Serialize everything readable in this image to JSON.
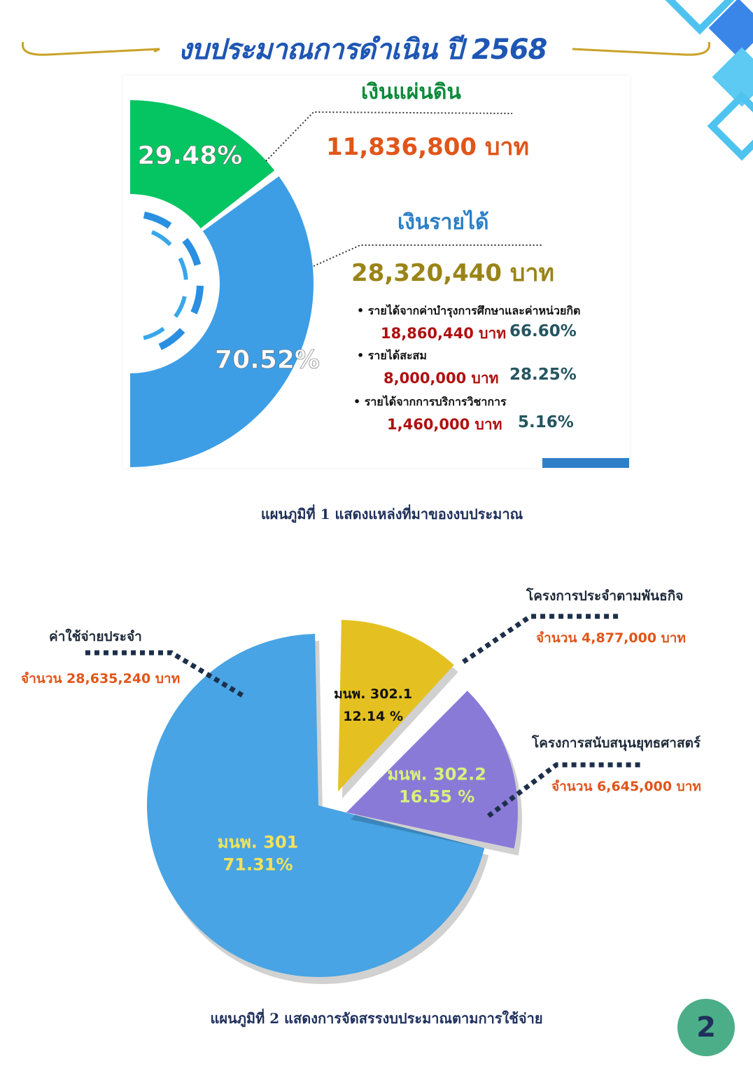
{
  "title": "งบประมาณการดำเนิน ปี 2568",
  "page_number": "2",
  "chart_data": [
    {
      "type": "pie",
      "style": "half-donut",
      "caption": "แผนภูมิที่ 1 แสดงแหล่งที่มาของงบประมาณ",
      "categories": [
        "เงินแผ่นดิน",
        "เงินรายได้"
      ],
      "values": [
        11836800,
        28320440
      ],
      "percent_labels": [
        "29.48%",
        "70.52%"
      ],
      "amount_labels": [
        "11,836,800 บาท",
        "28,320,440 บาท"
      ],
      "colors": [
        "#05c462",
        "#3d9ee6"
      ],
      "breakdown": [
        {
          "label": "รายได้จากค่าบำรุงการศึกษาและค่าหน่วยกิต",
          "amount": "18,860,440 บาท",
          "percent": "66.60%"
        },
        {
          "label": "รายได้สะสม",
          "amount": "8,000,000 บาท",
          "percent": "28.25%"
        },
        {
          "label": "รายได้จากการบริการวิชาการ",
          "amount": "1,460,000 บาท",
          "percent": "5.16%"
        }
      ]
    },
    {
      "type": "pie",
      "style": "exploded",
      "caption": "แผนภูมิที่ 2 แสดงการจัดสรรงบประมาณตามการใช้จ่าย",
      "slices": [
        {
          "name": "ค่าใช้จ่ายประจำ",
          "code": "มนพ.  301",
          "percent": 71.31,
          "percent_label": "71.31%",
          "amount": "จำนวน 28,635,240 บาท",
          "color": "#48a4e4",
          "text_color": "#f4e35a"
        },
        {
          "name": "โครงการประจำตามพันธกิจ",
          "code": "มนพ. 302.1",
          "percent": 12.14,
          "percent_label": "12.14 %",
          "amount": "จำนวน  4,877,000 บาท",
          "color": "#e4c121",
          "text_color": "#111111"
        },
        {
          "name": "โครงการสนับสนุนยุทธศาสตร์",
          "code": "มนพ. 302.2",
          "percent": 16.55,
          "percent_label": "16.55 %",
          "amount": "จำนวน 6,645,000 บาท",
          "color": "#8a7ad8",
          "text_color": "#d8f27a"
        }
      ]
    }
  ]
}
